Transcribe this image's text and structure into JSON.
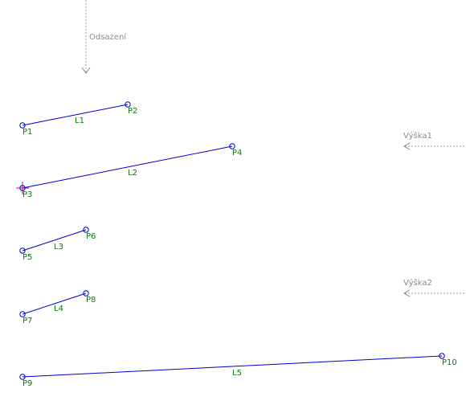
{
  "annotations": [
    "Odsazení",
    "Výška1",
    "Výška2"
  ],
  "points": [
    "P1",
    "P2",
    "P3",
    "P4",
    "P5",
    "P6",
    "P7",
    "P8",
    "P9",
    "P10"
  ],
  "lines": [
    "L1",
    "L2",
    "L3",
    "L4",
    "L5"
  ]
}
